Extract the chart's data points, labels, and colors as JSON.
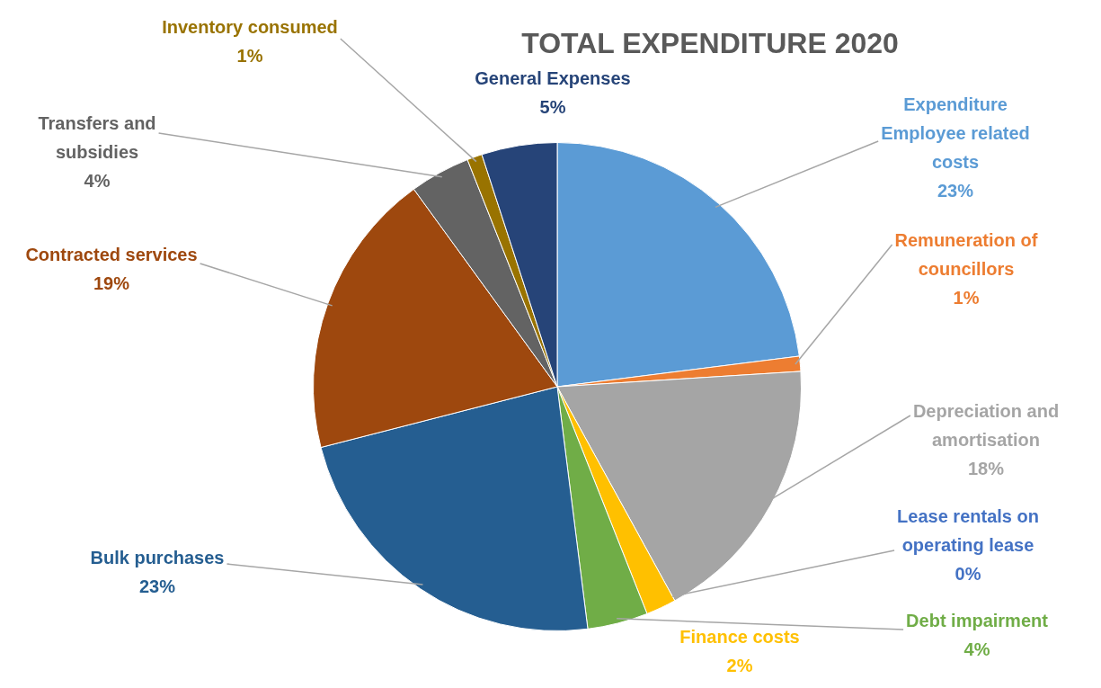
{
  "chart_data": {
    "type": "pie",
    "title": "TOTAL EXPENDITURE 2020",
    "categories": [
      "Expenditure Employee related costs",
      "Remuneration of councillors",
      "Depreciation and amortisation",
      "Lease rentals on operating lease",
      "Finance costs",
      "Debt impairment",
      "Bulk purchases",
      "Contracted services",
      "Transfers and subsidies",
      "Inventory consumed",
      "General Expenses"
    ],
    "values": [
      23,
      1,
      18,
      0,
      2,
      4,
      23,
      19,
      4,
      1,
      5
    ],
    "value_labels": [
      "23%",
      "1%",
      "18%",
      "0%",
      "2%",
      "4%",
      "23%",
      "19%",
      "4%",
      "1%",
      "5%"
    ],
    "colors": [
      "#5b9bd5",
      "#ed7d31",
      "#a5a5a5",
      "#4472c4",
      "#ffc000",
      "#70ad47",
      "#255e91",
      "#9e480e",
      "#636363",
      "#997300",
      "#264478"
    ]
  }
}
